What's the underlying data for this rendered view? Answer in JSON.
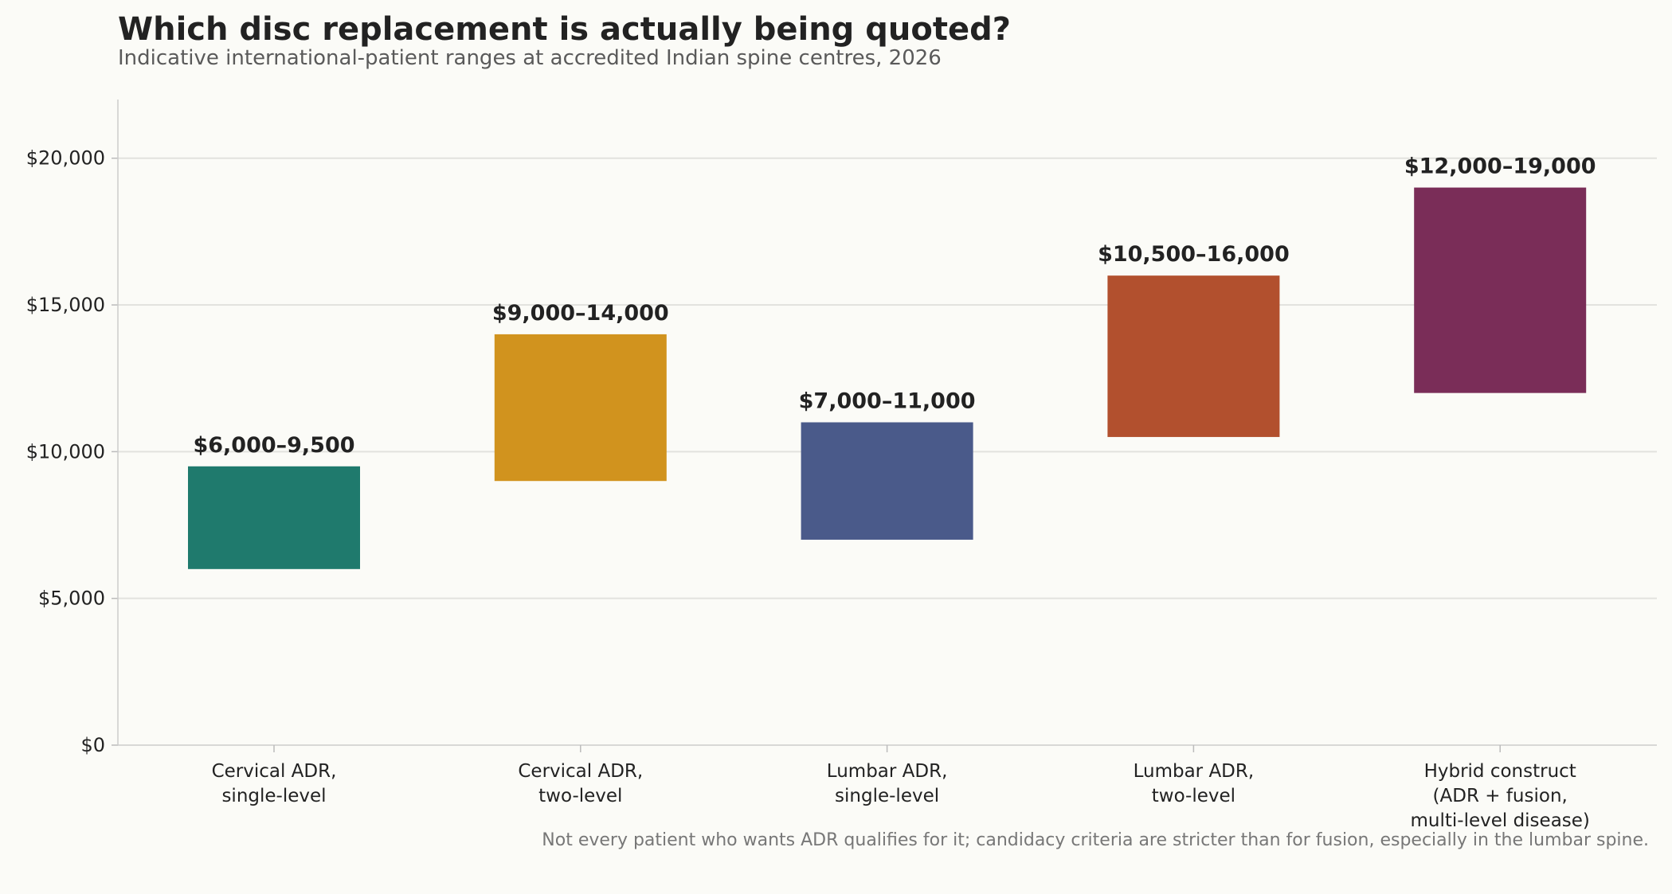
{
  "chart_data": {
    "type": "bar",
    "title": "Which disc replacement is actually being quoted?",
    "subtitle": "Indicative international-patient ranges at accredited Indian spine centres, 2026",
    "categories": [
      [
        "Cervical ADR,",
        "single-level"
      ],
      [
        "Cervical ADR,",
        "two-level"
      ],
      [
        "Lumbar ADR,",
        "single-level"
      ],
      [
        "Lumbar ADR,",
        "two-level"
      ],
      [
        "Hybrid construct",
        "(ADR + fusion,",
        "multi-level disease)"
      ]
    ],
    "ranges": [
      {
        "low": 6000,
        "high": 9500,
        "label": "$6,000–9,500",
        "color": "#1f7a6d"
      },
      {
        "low": 9000,
        "high": 14000,
        "label": "$9,000–14,000",
        "color": "#d1931e"
      },
      {
        "low": 7000,
        "high": 11000,
        "label": "$7,000–11,000",
        "color": "#4a5a8a"
      },
      {
        "low": 10500,
        "high": 16000,
        "label": "$10,500–16,000",
        "color": "#b2502e"
      },
      {
        "low": 12000,
        "high": 19000,
        "label": "$12,000–19,000",
        "color": "#7a2d58"
      }
    ],
    "ylim": [
      0,
      22000
    ],
    "yticks": [
      0,
      5000,
      10000,
      15000,
      20000
    ],
    "ytick_labels": [
      "$0",
      "$5,000",
      "$10,000",
      "$15,000",
      "$20,000"
    ],
    "grid": true,
    "footnote": "Not every patient who wants ADR qualifies for it; candidacy criteria are stricter than for fusion, especially in the lumbar spine."
  }
}
